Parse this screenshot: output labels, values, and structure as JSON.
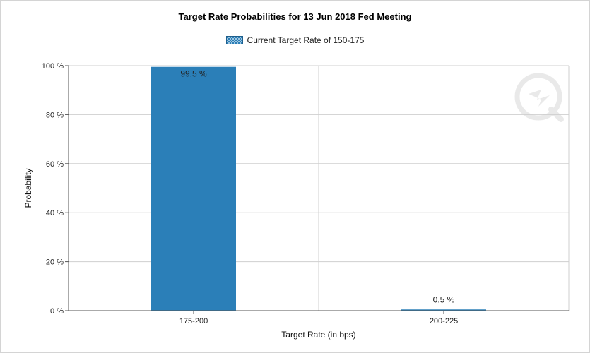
{
  "chart_data": {
    "type": "bar",
    "title": "Target Rate Probabilities for 13 Jun 2018 Fed Meeting",
    "legend": {
      "position": "top-center",
      "entries": [
        "Current Target Rate of 150-175"
      ]
    },
    "categories": [
      "175-200",
      "200-225"
    ],
    "series": [
      {
        "name": "Current Target Rate of 150-175",
        "values": [
          99.5,
          0.5
        ],
        "color": "#2b7fb8"
      }
    ],
    "data_labels": [
      "99.5 %",
      "0.5 %"
    ],
    "xlabel": "Target Rate (in bps)",
    "ylabel": "Probability",
    "ylim": [
      0,
      100
    ],
    "yticks": [
      0,
      20,
      40,
      60,
      80,
      100
    ],
    "ytick_labels": [
      "0 %",
      "20 %",
      "40 %",
      "60 %",
      "80 %",
      "100 %"
    ],
    "grid": true
  }
}
